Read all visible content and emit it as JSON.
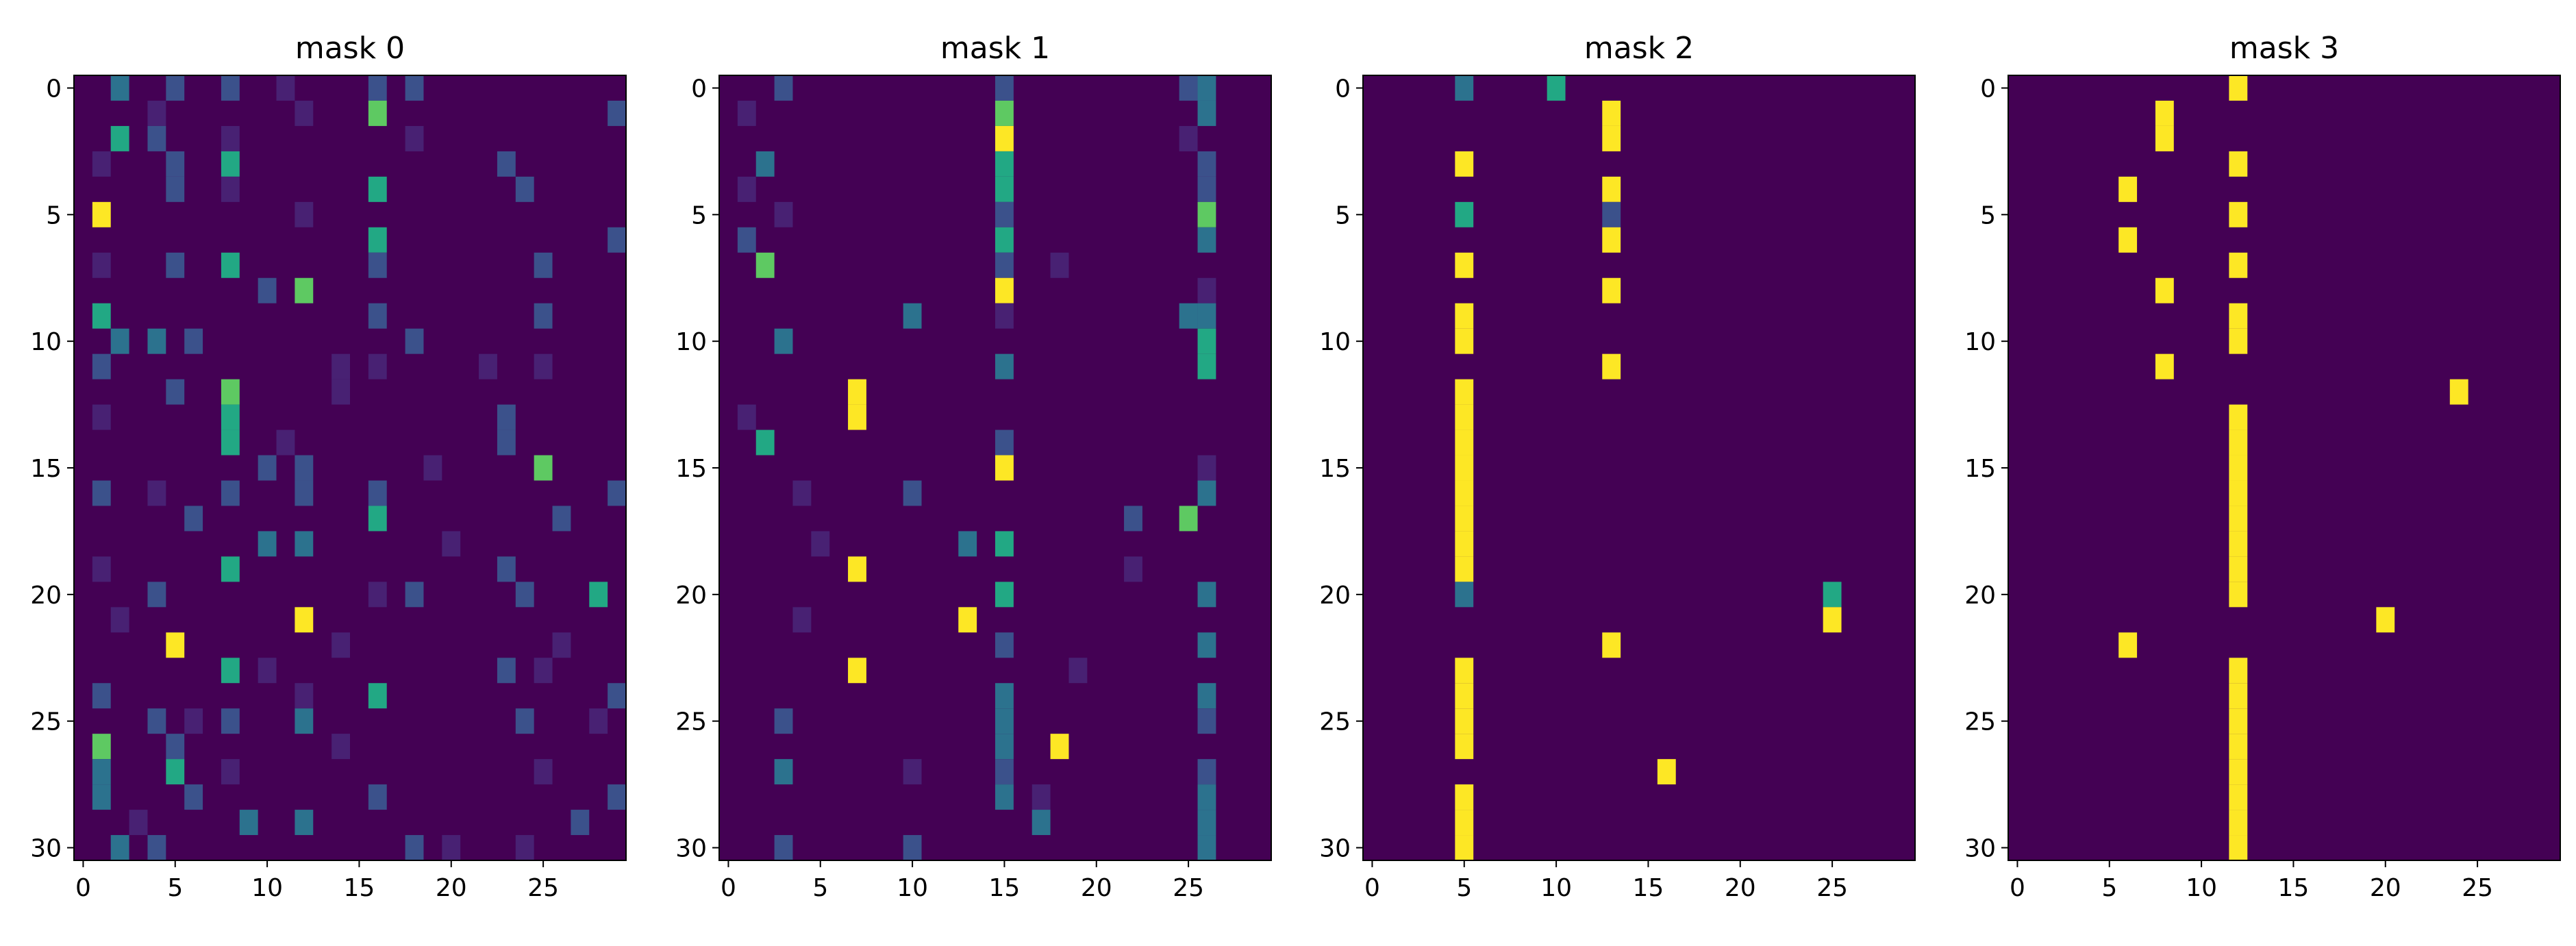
{
  "colors": {
    "background": "#440154",
    "low": "#482173",
    "mid": "#3b518b",
    "teal": "#2c728e",
    "green": "#22a884",
    "lime": "#5ec962",
    "high": "#fde725"
  },
  "chart_data": [
    {
      "type": "heatmap",
      "title": "mask 0",
      "xlabel": "",
      "ylabel": "",
      "rows": 31,
      "cols": 30,
      "xlim": [
        0,
        29
      ],
      "ylim": [
        0,
        30
      ],
      "x_ticks": [
        0,
        5,
        10,
        15,
        20,
        25
      ],
      "y_ticks": [
        0,
        5,
        10,
        15,
        20,
        25,
        30
      ],
      "cells": [
        [
          0,
          2,
          0.35
        ],
        [
          0,
          5,
          0.2
        ],
        [
          0,
          8,
          0.2
        ],
        [
          0,
          16,
          0.3
        ],
        [
          0,
          18,
          0.3
        ],
        [
          0,
          11,
          0.12
        ],
        [
          1,
          16,
          0.7
        ],
        [
          1,
          29,
          0.2
        ],
        [
          1,
          4,
          0.15
        ],
        [
          1,
          12,
          0.1
        ],
        [
          2,
          2,
          0.6
        ],
        [
          2,
          4,
          0.2
        ],
        [
          2,
          8,
          0.15
        ],
        [
          2,
          18,
          0.15
        ],
        [
          3,
          5,
          0.3
        ],
        [
          3,
          8,
          0.6
        ],
        [
          3,
          23,
          0.2
        ],
        [
          3,
          1,
          0.12
        ],
        [
          4,
          5,
          0.3
        ],
        [
          4,
          8,
          0.15
        ],
        [
          4,
          16,
          0.5
        ],
        [
          4,
          24,
          0.2
        ],
        [
          5,
          1,
          1.0
        ],
        [
          5,
          12,
          0.12
        ],
        [
          6,
          16,
          0.6
        ],
        [
          6,
          29,
          0.3
        ],
        [
          7,
          5,
          0.3
        ],
        [
          7,
          8,
          0.6
        ],
        [
          7,
          16,
          0.2
        ],
        [
          7,
          25,
          0.2
        ],
        [
          7,
          1,
          0.15
        ],
        [
          8,
          10,
          0.3
        ],
        [
          8,
          12,
          0.7
        ],
        [
          9,
          1,
          0.6
        ],
        [
          9,
          16,
          0.25
        ],
        [
          9,
          25,
          0.2
        ],
        [
          10,
          2,
          0.35
        ],
        [
          10,
          4,
          0.4
        ],
        [
          10,
          6,
          0.2
        ],
        [
          10,
          18,
          0.2
        ],
        [
          11,
          1,
          0.3
        ],
        [
          11,
          14,
          0.15
        ],
        [
          11,
          16,
          0.12
        ],
        [
          11,
          22,
          0.12
        ],
        [
          11,
          25,
          0.1
        ],
        [
          12,
          5,
          0.3
        ],
        [
          12,
          8,
          0.7
        ],
        [
          12,
          14,
          0.1
        ],
        [
          13,
          8,
          0.55
        ],
        [
          13,
          23,
          0.3
        ],
        [
          13,
          1,
          0.1
        ],
        [
          14,
          8,
          0.55
        ],
        [
          14,
          23,
          0.3
        ],
        [
          14,
          11,
          0.12
        ],
        [
          15,
          10,
          0.2
        ],
        [
          15,
          12,
          0.25
        ],
        [
          15,
          25,
          0.7
        ],
        [
          15,
          19,
          0.1
        ],
        [
          16,
          1,
          0.2
        ],
        [
          16,
          8,
          0.3
        ],
        [
          16,
          12,
          0.3
        ],
        [
          16,
          16,
          0.2
        ],
        [
          16,
          29,
          0.2
        ],
        [
          16,
          4,
          0.1
        ],
        [
          17,
          6,
          0.3
        ],
        [
          17,
          16,
          0.6
        ],
        [
          17,
          26,
          0.2
        ],
        [
          18,
          10,
          0.4
        ],
        [
          18,
          12,
          0.4
        ],
        [
          18,
          20,
          0.1
        ],
        [
          19,
          8,
          0.5
        ],
        [
          19,
          23,
          0.3
        ],
        [
          19,
          1,
          0.1
        ],
        [
          20,
          4,
          0.2
        ],
        [
          20,
          16,
          0.12
        ],
        [
          20,
          18,
          0.2
        ],
        [
          20,
          24,
          0.3
        ],
        [
          20,
          28,
          0.5
        ],
        [
          21,
          12,
          1.0
        ],
        [
          21,
          2,
          0.1
        ],
        [
          22,
          5,
          1.0
        ],
        [
          22,
          14,
          0.15
        ],
        [
          22,
          26,
          0.12
        ],
        [
          23,
          8,
          0.5
        ],
        [
          23,
          23,
          0.3
        ],
        [
          23,
          10,
          0.15
        ],
        [
          23,
          25,
          0.15
        ],
        [
          24,
          1,
          0.2
        ],
        [
          24,
          16,
          0.6
        ],
        [
          24,
          29,
          0.3
        ],
        [
          24,
          12,
          0.1
        ],
        [
          25,
          4,
          0.3
        ],
        [
          25,
          6,
          0.15
        ],
        [
          25,
          8,
          0.2
        ],
        [
          25,
          12,
          0.4
        ],
        [
          25,
          24,
          0.2
        ],
        [
          25,
          28,
          0.15
        ],
        [
          26,
          1,
          0.85
        ],
        [
          26,
          5,
          0.2
        ],
        [
          26,
          14,
          0.1
        ],
        [
          27,
          1,
          0.35
        ],
        [
          27,
          5,
          0.65
        ],
        [
          27,
          8,
          0.15
        ],
        [
          27,
          25,
          0.12
        ],
        [
          28,
          1,
          0.35
        ],
        [
          28,
          6,
          0.2
        ],
        [
          28,
          16,
          0.3
        ],
        [
          28,
          29,
          0.2
        ],
        [
          29,
          9,
          0.35
        ],
        [
          29,
          12,
          0.35
        ],
        [
          29,
          27,
          0.2
        ],
        [
          29,
          3,
          0.1
        ],
        [
          30,
          2,
          0.35
        ],
        [
          30,
          4,
          0.2
        ],
        [
          30,
          18,
          0.2
        ],
        [
          30,
          20,
          0.12
        ],
        [
          30,
          24,
          0.15
        ]
      ]
    },
    {
      "type": "heatmap",
      "title": "mask 1",
      "xlabel": "",
      "ylabel": "",
      "rows": 31,
      "cols": 30,
      "xlim": [
        0,
        29
      ],
      "ylim": [
        0,
        30
      ],
      "x_ticks": [
        0,
        5,
        10,
        15,
        20,
        25
      ],
      "y_ticks": [
        0,
        5,
        10,
        15,
        20,
        25,
        30
      ],
      "cells": [
        [
          0,
          3,
          0.2
        ],
        [
          0,
          15,
          0.2
        ],
        [
          0,
          25,
          0.3
        ],
        [
          0,
          26,
          0.4
        ],
        [
          1,
          1,
          0.15
        ],
        [
          1,
          15,
          0.7
        ],
        [
          1,
          26,
          0.35
        ],
        [
          2,
          15,
          1.0
        ],
        [
          2,
          25,
          0.12
        ],
        [
          3,
          2,
          0.35
        ],
        [
          3,
          15,
          0.55
        ],
        [
          3,
          26,
          0.2
        ],
        [
          4,
          15,
          0.55
        ],
        [
          4,
          26,
          0.2
        ],
        [
          4,
          1,
          0.1
        ],
        [
          5,
          3,
          0.12
        ],
        [
          5,
          15,
          0.25
        ],
        [
          5,
          26,
          0.8
        ],
        [
          6,
          1,
          0.2
        ],
        [
          6,
          15,
          0.5
        ],
        [
          6,
          26,
          0.35
        ],
        [
          7,
          2,
          0.8
        ],
        [
          7,
          15,
          0.2
        ],
        [
          7,
          18,
          0.1
        ],
        [
          8,
          15,
          1.0
        ],
        [
          8,
          26,
          0.12
        ],
        [
          9,
          10,
          0.35
        ],
        [
          9,
          15,
          0.15
        ],
        [
          9,
          25,
          0.35
        ],
        [
          9,
          26,
          0.45
        ],
        [
          10,
          3,
          0.35
        ],
        [
          10,
          26,
          0.5
        ],
        [
          11,
          15,
          0.35
        ],
        [
          11,
          26,
          0.5
        ],
        [
          12,
          7,
          1.0
        ],
        [
          13,
          7,
          1.0
        ],
        [
          13,
          1,
          0.1
        ],
        [
          14,
          2,
          0.6
        ],
        [
          14,
          15,
          0.3
        ],
        [
          15,
          15,
          1.0
        ],
        [
          15,
          26,
          0.12
        ],
        [
          16,
          10,
          0.2
        ],
        [
          16,
          26,
          0.35
        ],
        [
          16,
          4,
          0.1
        ],
        [
          17,
          22,
          0.2
        ],
        [
          17,
          25,
          0.8
        ],
        [
          18,
          5,
          0.12
        ],
        [
          18,
          13,
          0.35
        ],
        [
          18,
          15,
          0.55
        ],
        [
          19,
          7,
          1.0
        ],
        [
          19,
          22,
          0.1
        ],
        [
          20,
          15,
          0.6
        ],
        [
          20,
          26,
          0.35
        ],
        [
          21,
          13,
          1.0
        ],
        [
          21,
          4,
          0.1
        ],
        [
          22,
          15,
          0.3
        ],
        [
          22,
          26,
          0.45
        ],
        [
          23,
          7,
          1.0
        ],
        [
          23,
          19,
          0.12
        ],
        [
          24,
          15,
          0.35
        ],
        [
          24,
          26,
          0.35
        ],
        [
          25,
          3,
          0.3
        ],
        [
          25,
          15,
          0.35
        ],
        [
          25,
          26,
          0.2
        ],
        [
          26,
          15,
          0.35
        ],
        [
          26,
          18,
          1.0
        ],
        [
          27,
          3,
          0.35
        ],
        [
          27,
          15,
          0.3
        ],
        [
          27,
          26,
          0.3
        ],
        [
          27,
          10,
          0.12
        ],
        [
          28,
          15,
          0.35
        ],
        [
          28,
          26,
          0.4
        ],
        [
          28,
          17,
          0.1
        ],
        [
          29,
          17,
          0.45
        ],
        [
          29,
          26,
          0.4
        ],
        [
          30,
          3,
          0.2
        ],
        [
          30,
          10,
          0.3
        ],
        [
          30,
          26,
          0.35
        ]
      ]
    },
    {
      "type": "heatmap",
      "title": "mask 2",
      "xlabel": "",
      "ylabel": "",
      "rows": 31,
      "cols": 30,
      "xlim": [
        0,
        29
      ],
      "ylim": [
        0,
        30
      ],
      "x_ticks": [
        0,
        5,
        10,
        15,
        20,
        25
      ],
      "y_ticks": [
        0,
        5,
        10,
        15,
        20,
        25,
        30
      ],
      "cells": [
        [
          0,
          5,
          0.35
        ],
        [
          0,
          10,
          0.6
        ],
        [
          1,
          13,
          1.0
        ],
        [
          2,
          13,
          1.0
        ],
        [
          3,
          5,
          1.0
        ],
        [
          4,
          13,
          1.0
        ],
        [
          5,
          5,
          0.65
        ],
        [
          5,
          13,
          0.25
        ],
        [
          6,
          13,
          1.0
        ],
        [
          7,
          5,
          1.0
        ],
        [
          8,
          13,
          1.0
        ],
        [
          9,
          5,
          1.0
        ],
        [
          10,
          5,
          1.0
        ],
        [
          11,
          13,
          1.0
        ],
        [
          12,
          5,
          1.0
        ],
        [
          13,
          5,
          1.0
        ],
        [
          14,
          5,
          1.0
        ],
        [
          15,
          5,
          1.0
        ],
        [
          16,
          5,
          1.0
        ],
        [
          17,
          5,
          1.0
        ],
        [
          18,
          5,
          1.0
        ],
        [
          19,
          5,
          1.0
        ],
        [
          20,
          5,
          0.35
        ],
        [
          20,
          25,
          0.55
        ],
        [
          21,
          25,
          1.0
        ],
        [
          22,
          13,
          1.0
        ],
        [
          23,
          5,
          1.0
        ],
        [
          24,
          5,
          1.0
        ],
        [
          25,
          5,
          1.0
        ],
        [
          26,
          5,
          1.0
        ],
        [
          27,
          16,
          1.0
        ],
        [
          28,
          5,
          1.0
        ],
        [
          29,
          5,
          1.0
        ],
        [
          30,
          5,
          1.0
        ]
      ]
    },
    {
      "type": "heatmap",
      "title": "mask 3",
      "xlabel": "",
      "ylabel": "",
      "rows": 31,
      "cols": 30,
      "xlim": [
        0,
        29
      ],
      "ylim": [
        0,
        30
      ],
      "x_ticks": [
        0,
        5,
        10,
        15,
        20,
        25
      ],
      "y_ticks": [
        0,
        5,
        10,
        15,
        20,
        25,
        30
      ],
      "cells": [
        [
          0,
          12,
          1.0
        ],
        [
          1,
          8,
          1.0
        ],
        [
          2,
          8,
          1.0
        ],
        [
          3,
          12,
          1.0
        ],
        [
          4,
          6,
          1.0
        ],
        [
          5,
          12,
          1.0
        ],
        [
          6,
          6,
          1.0
        ],
        [
          7,
          12,
          1.0
        ],
        [
          8,
          8,
          1.0
        ],
        [
          9,
          12,
          1.0
        ],
        [
          10,
          12,
          1.0
        ],
        [
          11,
          8,
          1.0
        ],
        [
          12,
          24,
          1.0
        ],
        [
          13,
          12,
          1.0
        ],
        [
          14,
          12,
          1.0
        ],
        [
          15,
          12,
          1.0
        ],
        [
          16,
          12,
          1.0
        ],
        [
          17,
          12,
          1.0
        ],
        [
          18,
          12,
          1.0
        ],
        [
          19,
          12,
          1.0
        ],
        [
          20,
          12,
          1.0
        ],
        [
          21,
          20,
          1.0
        ],
        [
          22,
          6,
          1.0
        ],
        [
          23,
          12,
          1.0
        ],
        [
          24,
          12,
          1.0
        ],
        [
          25,
          12,
          1.0
        ],
        [
          26,
          12,
          1.0
        ],
        [
          27,
          12,
          1.0
        ],
        [
          28,
          12,
          1.0
        ],
        [
          29,
          12,
          1.0
        ],
        [
          30,
          12,
          1.0
        ]
      ]
    }
  ]
}
